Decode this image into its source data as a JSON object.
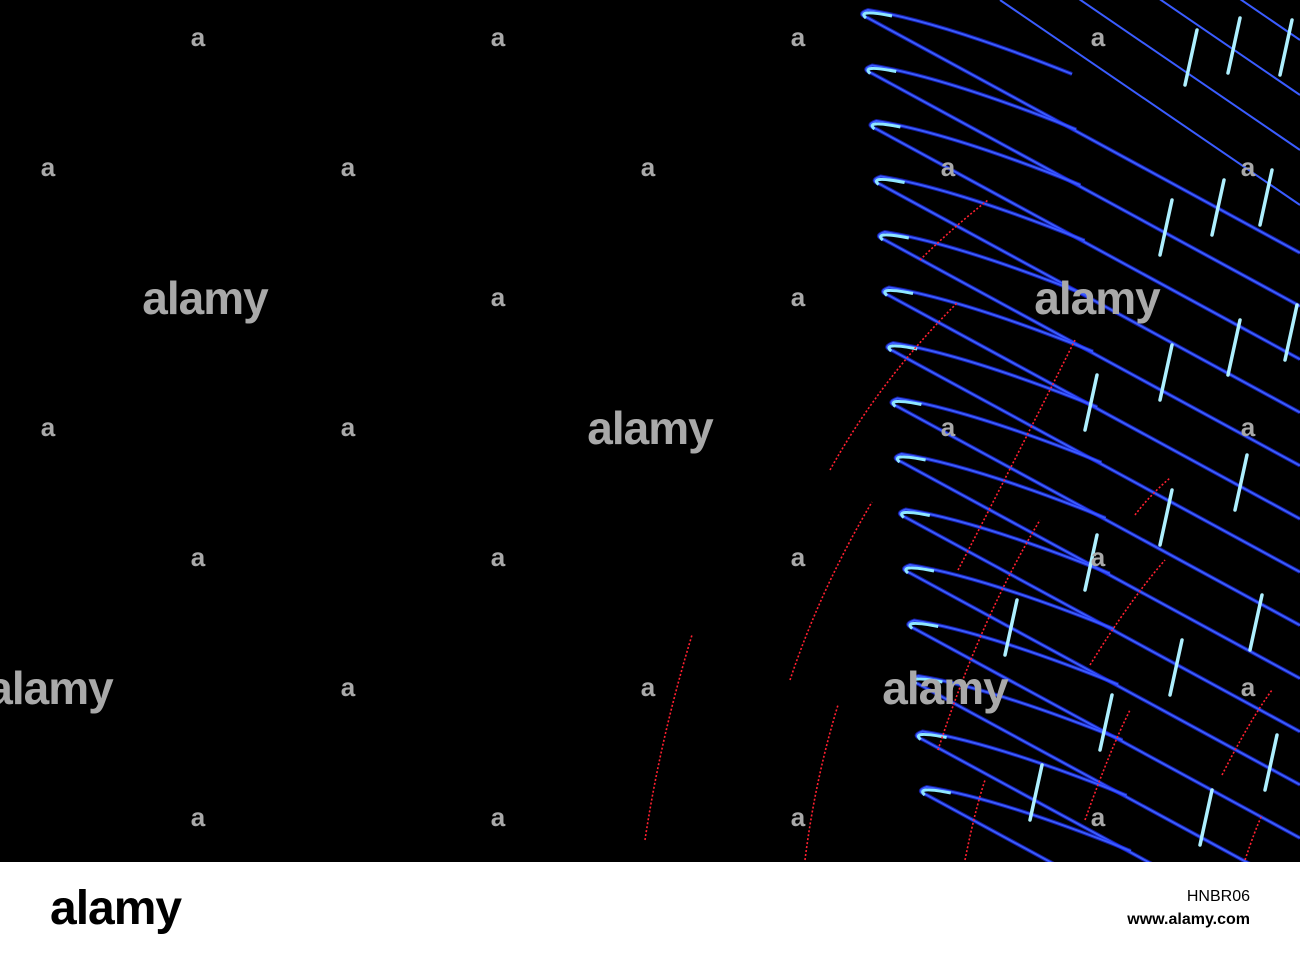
{
  "watermark": {
    "large": [
      "alamy",
      "alamy",
      "alamy",
      "alamy",
      "alamy"
    ],
    "small": [
      "a",
      "a",
      "a",
      "a",
      "a",
      "a",
      "a",
      "a",
      "a",
      "a",
      "a",
      "a",
      "a",
      "a",
      "a",
      "a",
      "a",
      "a",
      "a",
      "a",
      "a",
      "a",
      "a",
      "a",
      "a",
      "a"
    ]
  },
  "footer": {
    "logo": "alamy",
    "image_id": "HNBR06",
    "url": "www.alamy.com"
  }
}
